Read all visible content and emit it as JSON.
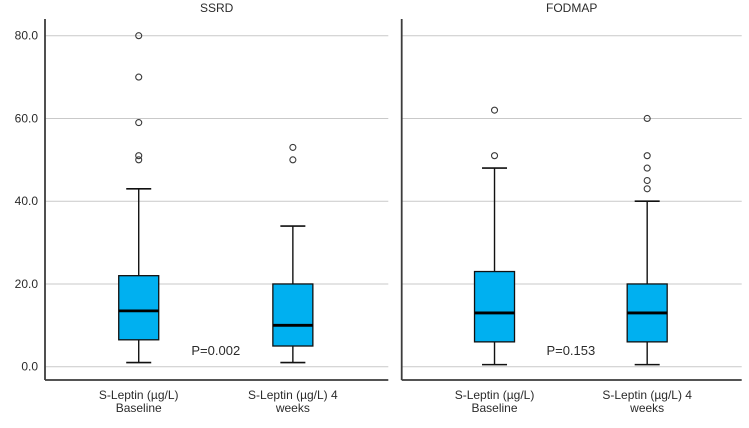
{
  "figure": {
    "background": "#ffffff",
    "box_fill": "#00b0f0",
    "box_stroke": "#111111",
    "median_color": "#000000",
    "whisker_color": "#111111",
    "outlier_color": "#3a3a3a",
    "gridline_color": "#c9c9c9",
    "axis_color": "#3c3c3c",
    "text_color": "#2b2b2b"
  },
  "chart_data": {
    "type": "box",
    "title": "",
    "ylabel": "",
    "xlabel": "",
    "grid": true,
    "legend": "none",
    "y_axis": {
      "ticks": [
        0,
        20,
        40,
        60,
        80
      ],
      "tick_labels": [
        "0.0",
        "20.0",
        "40.0",
        "60.0",
        "80.0"
      ],
      "range": [
        -3.2,
        84
      ]
    },
    "panels": [
      {
        "title": "SSRD",
        "p_label": "P=0.002",
        "categories": [
          {
            "label_lines": [
              "S-Leptin (µg/L)",
              "Baseline"
            ],
            "whisker_low": 1,
            "q1": 6.5,
            "median": 13.5,
            "q3": 22,
            "whisker_high": 43,
            "outliers": [
              50,
              51,
              59,
              70,
              80
            ]
          },
          {
            "label_lines": [
              "S-Leptin (µg/L) 4",
              "weeks"
            ],
            "whisker_low": 1,
            "q1": 5,
            "median": 10,
            "q3": 20,
            "whisker_high": 34,
            "outliers": [
              50,
              53
            ]
          }
        ]
      },
      {
        "title": "FODMAP",
        "p_label": "P=0.153",
        "categories": [
          {
            "label_lines": [
              "S-Leptin (µg/L)",
              "Baseline"
            ],
            "whisker_low": 0.5,
            "q1": 6,
            "median": 13,
            "q3": 23,
            "whisker_high": 48,
            "outliers": [
              51,
              62
            ]
          },
          {
            "label_lines": [
              "S-Leptin (µg/L) 4",
              "weeks"
            ],
            "whisker_low": 0.5,
            "q1": 6,
            "median": 13,
            "q3": 20,
            "whisker_high": 40,
            "outliers": [
              43,
              45,
              48,
              51,
              60
            ]
          }
        ]
      }
    ]
  }
}
